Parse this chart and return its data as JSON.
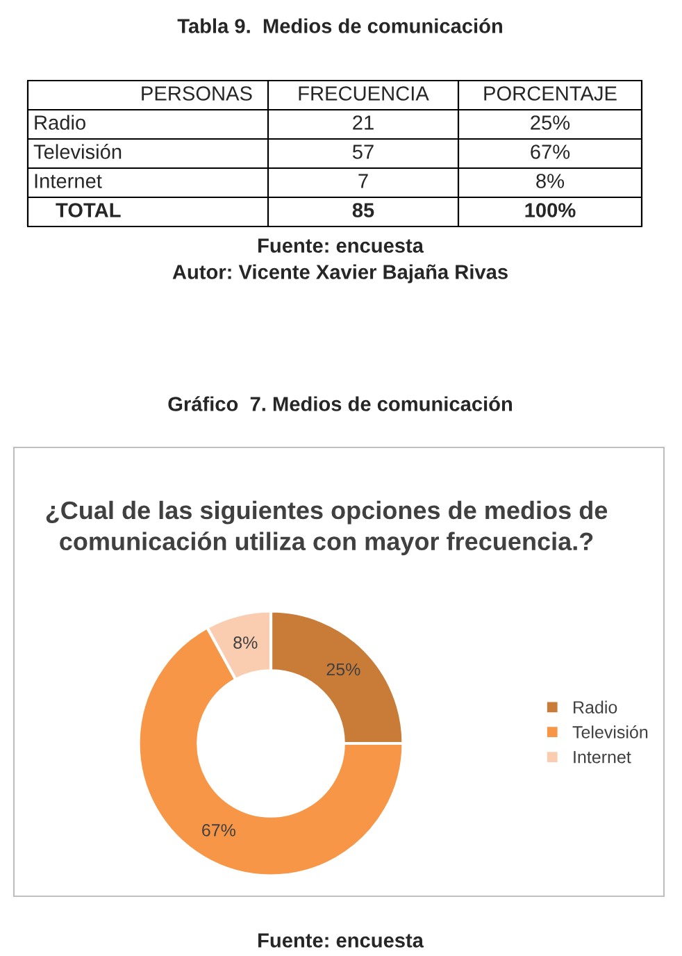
{
  "chart_data": {
    "type": "donut",
    "title": "¿Cual de las siguientes opciones de medios de comunicación utiliza con mayor frecuencia.?",
    "categories": [
      "Radio",
      "Televisión",
      "Internet"
    ],
    "values": [
      25,
      67,
      8
    ],
    "value_labels": [
      "25%",
      "67%",
      "8%"
    ],
    "colors": [
      "#c97b38",
      "#f79646",
      "#fbcdb0"
    ],
    "legend": "right",
    "annotations": [
      "Tabla 9.  Medios de comunicación",
      "PERSONAS",
      "FRECUENCIA",
      "PORCENTAJE",
      "Radio",
      "21",
      "25%",
      "Televisión",
      "57",
      "67%",
      "Internet",
      "7",
      "8%",
      "TOTAL",
      "85",
      "100%",
      "Fuente: encuesta",
      "Autor: Vicente Xavier Bajaña Rivas",
      "Gráfico  7. Medios de comunicación",
      "Fuente: encuesta"
    ]
  }
}
